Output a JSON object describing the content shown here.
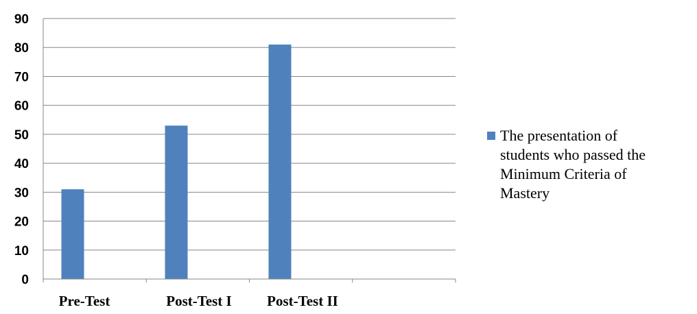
{
  "chart_data": {
    "type": "bar",
    "categories": [
      "Pre-Test",
      "Post-Test I",
      "Post-Test II"
    ],
    "series": [
      {
        "name": "The presentation of students who passed the Minimum Criteria of Mastery",
        "values": [
          31,
          53,
          81
        ],
        "color": "#4F81BD"
      }
    ],
    "yticks": [
      "0",
      "10",
      "20",
      "30",
      "40",
      "50",
      "60",
      "70",
      "80",
      "90"
    ],
    "ylim": [
      0,
      90
    ],
    "legend_position": "right",
    "legend_lines": [
      "The presentation of",
      "students who passed the",
      "Minimum Criteria of",
      "Mastery"
    ],
    "grid": true,
    "gridline_color": "#868686"
  }
}
